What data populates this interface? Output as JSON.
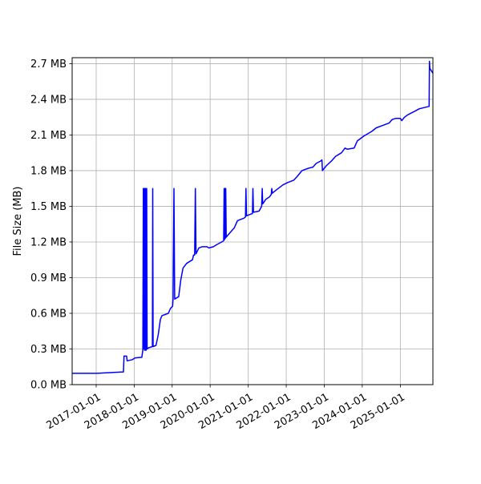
{
  "chart_data": {
    "type": "line",
    "title": "",
    "xlabel": "",
    "ylabel": "File Size (MB)",
    "xlim": [
      "2016-05-15",
      "2025-11-10"
    ],
    "ylim": [
      0,
      2.75
    ],
    "grid": true,
    "line_color": "#0000ff",
    "x_ticks": [
      "2017-01-01",
      "2018-01-01",
      "2019-01-01",
      "2020-01-01",
      "2021-01-01",
      "2022-01-01",
      "2023-01-01",
      "2024-01-01",
      "2025-01-01"
    ],
    "y_ticks": [
      {
        "value": 0.0,
        "label": "0.0 MB"
      },
      {
        "value": 0.3,
        "label": "0.3 MB"
      },
      {
        "value": 0.6,
        "label": "0.6 MB"
      },
      {
        "value": 0.9,
        "label": "0.9 MB"
      },
      {
        "value": 1.2,
        "label": "1.2 MB"
      },
      {
        "value": 1.5,
        "label": "1.5 MB"
      },
      {
        "value": 1.8,
        "label": "1.8 MB"
      },
      {
        "value": 2.1,
        "label": "2.1 MB"
      },
      {
        "value": 2.4,
        "label": "2.4 MB"
      },
      {
        "value": 2.7,
        "label": "2.7 MB"
      }
    ],
    "series": [
      {
        "points": [
          [
            "2016-05-15",
            0.095
          ],
          [
            "2017-01-10",
            0.095
          ],
          [
            "2017-03-01",
            0.098
          ],
          [
            "2017-08-15",
            0.105
          ],
          [
            "2017-09-20",
            0.107
          ],
          [
            "2017-09-25",
            0.24
          ],
          [
            "2017-10-20",
            0.24
          ],
          [
            "2017-10-25",
            0.2
          ],
          [
            "2017-12-15",
            0.21
          ],
          [
            "2018-01-10",
            0.225
          ],
          [
            "2018-03-15",
            0.23
          ],
          [
            "2018-03-25",
            0.29
          ],
          [
            "2018-03-30",
            1.65
          ],
          [
            "2018-04-03",
            0.3
          ],
          [
            "2018-04-07",
            1.65
          ],
          [
            "2018-04-11",
            0.29
          ],
          [
            "2018-04-15",
            1.65
          ],
          [
            "2018-04-19",
            0.29
          ],
          [
            "2018-04-23",
            1.65
          ],
          [
            "2018-04-27",
            0.29
          ],
          [
            "2018-05-01",
            1.65
          ],
          [
            "2018-05-05",
            0.3
          ],
          [
            "2018-05-20",
            0.31
          ],
          [
            "2018-06-25",
            0.32
          ],
          [
            "2018-06-28",
            1.65
          ],
          [
            "2018-07-02",
            0.32
          ],
          [
            "2018-07-30",
            0.33
          ],
          [
            "2018-08-20",
            0.42
          ],
          [
            "2018-09-10",
            0.55
          ],
          [
            "2018-09-25",
            0.58
          ],
          [
            "2018-11-25",
            0.6
          ],
          [
            "2018-12-15",
            0.64
          ],
          [
            "2019-01-05",
            0.66
          ],
          [
            "2019-01-10",
            0.72
          ],
          [
            "2019-01-18",
            1.65
          ],
          [
            "2019-01-25",
            0.72
          ],
          [
            "2019-03-05",
            0.74
          ],
          [
            "2019-03-25",
            0.88
          ],
          [
            "2019-04-15",
            0.98
          ],
          [
            "2019-05-20",
            1.02
          ],
          [
            "2019-07-15",
            1.05
          ],
          [
            "2019-07-25",
            1.09
          ],
          [
            "2019-08-05",
            1.09
          ],
          [
            "2019-08-12",
            1.65
          ],
          [
            "2019-08-18",
            1.1
          ],
          [
            "2019-09-15",
            1.15
          ],
          [
            "2019-10-15",
            1.16
          ],
          [
            "2019-12-01",
            1.16
          ],
          [
            "2019-12-20",
            1.15
          ],
          [
            "2020-02-01",
            1.16
          ],
          [
            "2020-03-10",
            1.18
          ],
          [
            "2020-04-20",
            1.2
          ],
          [
            "2020-05-10",
            1.21
          ],
          [
            "2020-05-14",
            1.65
          ],
          [
            "2020-05-18",
            1.22
          ],
          [
            "2020-05-22",
            1.65
          ],
          [
            "2020-05-26",
            1.23
          ],
          [
            "2020-05-30",
            1.65
          ],
          [
            "2020-06-03",
            1.24
          ],
          [
            "2020-07-01",
            1.27
          ],
          [
            "2020-08-20",
            1.32
          ],
          [
            "2020-09-20",
            1.38
          ],
          [
            "2020-10-20",
            1.39
          ],
          [
            "2020-11-20",
            1.4
          ],
          [
            "2020-12-05",
            1.41
          ],
          [
            "2020-12-10",
            1.65
          ],
          [
            "2020-12-15",
            1.42
          ],
          [
            "2021-02-10",
            1.44
          ],
          [
            "2021-02-15",
            1.65
          ],
          [
            "2021-02-20",
            1.45
          ],
          [
            "2021-04-15",
            1.46
          ],
          [
            "2021-05-10",
            1.5
          ],
          [
            "2021-05-15",
            1.65
          ],
          [
            "2021-05-20",
            1.52
          ],
          [
            "2021-06-20",
            1.56
          ],
          [
            "2021-07-25",
            1.58
          ],
          [
            "2021-08-10",
            1.6
          ],
          [
            "2021-08-15",
            1.65
          ],
          [
            "2021-08-20",
            1.61
          ],
          [
            "2021-10-01",
            1.64
          ],
          [
            "2021-12-01",
            1.68
          ],
          [
            "2022-01-15",
            1.7
          ],
          [
            "2022-03-15",
            1.72
          ],
          [
            "2022-04-15",
            1.75
          ],
          [
            "2022-06-01",
            1.8
          ],
          [
            "2022-08-01",
            1.82
          ],
          [
            "2022-09-15",
            1.83
          ],
          [
            "2022-10-15",
            1.86
          ],
          [
            "2022-11-25",
            1.88
          ],
          [
            "2022-12-10",
            1.89
          ],
          [
            "2022-12-15",
            1.8
          ],
          [
            "2023-01-20",
            1.84
          ],
          [
            "2023-03-10",
            1.88
          ],
          [
            "2023-04-20",
            1.92
          ],
          [
            "2023-06-15",
            1.95
          ],
          [
            "2023-07-20",
            1.99
          ],
          [
            "2023-08-10",
            1.98
          ],
          [
            "2023-10-15",
            1.99
          ],
          [
            "2023-11-15",
            2.05
          ],
          [
            "2024-01-15",
            2.09
          ],
          [
            "2024-04-01",
            2.13
          ],
          [
            "2024-05-15",
            2.16
          ],
          [
            "2024-07-15",
            2.18
          ],
          [
            "2024-09-15",
            2.2
          ],
          [
            "2024-10-15",
            2.23
          ],
          [
            "2024-11-20",
            2.24
          ],
          [
            "2025-01-01",
            2.24
          ],
          [
            "2025-01-15",
            2.22
          ],
          [
            "2025-02-10",
            2.25
          ],
          [
            "2025-03-15",
            2.27
          ],
          [
            "2025-05-20",
            2.3
          ],
          [
            "2025-07-01",
            2.32
          ],
          [
            "2025-08-15",
            2.33
          ],
          [
            "2025-10-05",
            2.34
          ],
          [
            "2025-10-08",
            2.72
          ],
          [
            "2025-10-12",
            2.66
          ],
          [
            "2025-11-10",
            2.62
          ]
        ]
      }
    ]
  }
}
